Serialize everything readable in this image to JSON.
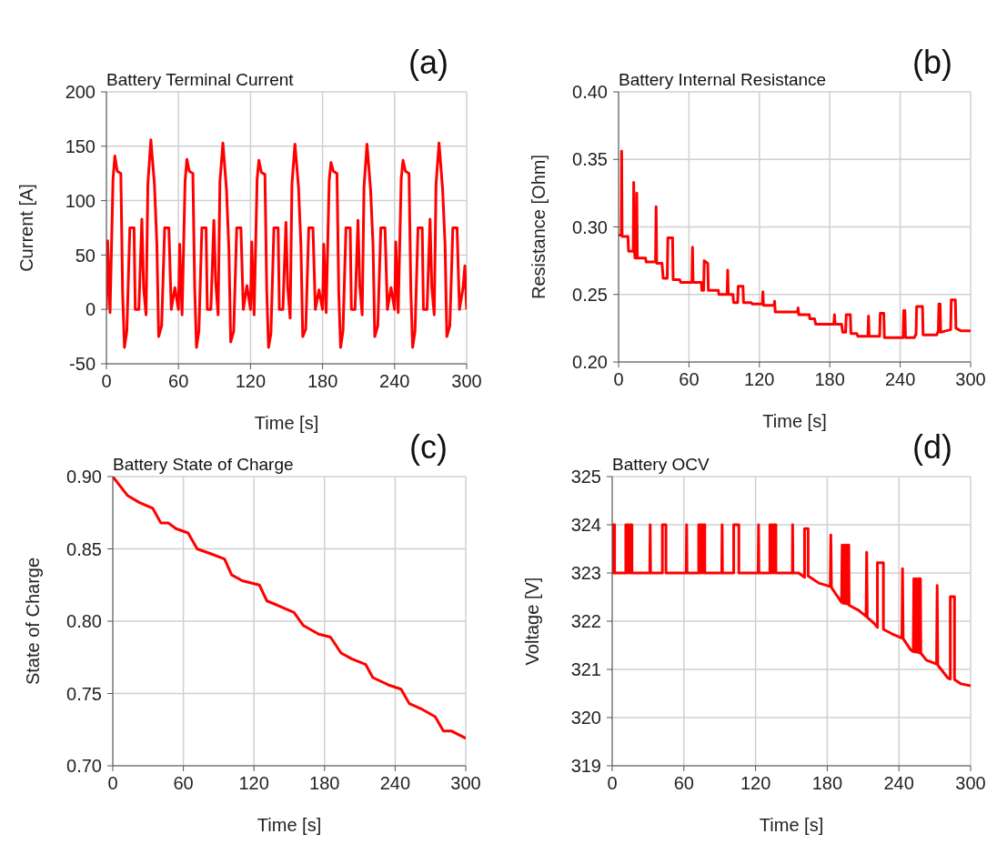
{
  "chart_data": [
    {
      "type": "line",
      "title": "Battery Terminal Current",
      "xlabel": "Time [s]",
      "ylabel": "Current [A]",
      "annotations": [
        "(a)"
      ],
      "grid": true,
      "marker": "none",
      "xlim": [
        0,
        300
      ],
      "xticks": [
        0,
        60,
        120,
        180,
        240,
        300
      ],
      "ylim": [
        -50,
        200
      ],
      "yticks": [
        -50,
        0,
        50,
        100,
        150,
        200
      ],
      "x": [
        0,
        1,
        3,
        5.5,
        7,
        9,
        12,
        13.5,
        15,
        17,
        19.5,
        23,
        24,
        27,
        29.5,
        31,
        33,
        34.5,
        37,
        40,
        42,
        43.5,
        46,
        48.5,
        52,
        54,
        57,
        60,
        61,
        63,
        65.5,
        67,
        69,
        72,
        73.5,
        75,
        77,
        79.5,
        83,
        84,
        87,
        89.5,
        91,
        93,
        94.5,
        97,
        100,
        102,
        103.5,
        106,
        108.5,
        112,
        114,
        117,
        120,
        121,
        123,
        125.5,
        127,
        129,
        132,
        133.5,
        135,
        137,
        139.5,
        143,
        144,
        147,
        149.5,
        151,
        153,
        154.5,
        157,
        160,
        162,
        163.5,
        166,
        168.5,
        172,
        174,
        177,
        180,
        181,
        183,
        185.5,
        187,
        189,
        192,
        193.5,
        195,
        197,
        199.5,
        203,
        204,
        207,
        209.5,
        211,
        213,
        214.5,
        217,
        220,
        222,
        223.5,
        226,
        228.5,
        232,
        234,
        237,
        240,
        241,
        243,
        245.5,
        247,
        249,
        252,
        253.5,
        255,
        257,
        259.5,
        263,
        264,
        267,
        269.5,
        271,
        273,
        274.5,
        277,
        280,
        282,
        283.5,
        286,
        288.5,
        292,
        294,
        297,
        298.5,
        300
      ],
      "series": [
        {
          "color": "#ff0000",
          "values": [
            0,
            63,
            -3,
            120,
            141,
            127,
            125,
            15,
            -35,
            -20,
            75,
            75,
            0,
            0,
            83,
            20,
            -5,
            115,
            156,
            115,
            60,
            -25,
            -15,
            75,
            75,
            0,
            20,
            0,
            60,
            -5,
            118,
            138,
            127,
            125,
            20,
            -35,
            -20,
            75,
            75,
            0,
            0,
            82,
            25,
            -5,
            117,
            153,
            110,
            55,
            -30,
            -20,
            75,
            75,
            0,
            22,
            0,
            62,
            -5,
            120,
            137,
            126,
            124,
            18,
            -35,
            -22,
            75,
            75,
            0,
            0,
            80,
            20,
            -8,
            115,
            152,
            112,
            58,
            -25,
            -18,
            75,
            75,
            0,
            18,
            0,
            60,
            -3,
            118,
            135,
            127,
            125,
            15,
            -35,
            -20,
            75,
            75,
            0,
            0,
            82,
            22,
            -5,
            112,
            152,
            110,
            60,
            -25,
            -15,
            75,
            75,
            0,
            20,
            0,
            62,
            -3,
            120,
            137,
            127,
            125,
            18,
            -35,
            -20,
            75,
            75,
            0,
            0,
            83,
            20,
            -5,
            115,
            153,
            110,
            60,
            -25,
            -15,
            75,
            75,
            0,
            20,
            40,
            0
          ]
        }
      ]
    },
    {
      "type": "line",
      "title": "Battery Internal Resistance",
      "xlabel": "Time [s]",
      "ylabel": "Resistance [Ohm]",
      "annotations": [
        "(b)"
      ],
      "grid": true,
      "marker": "none",
      "xlim": [
        0,
        300
      ],
      "xticks": [
        0,
        60,
        120,
        180,
        240,
        300
      ],
      "ylim": [
        0.2,
        0.4
      ],
      "yticks": [
        {
          "value": 0.2,
          "label": "0.20"
        },
        0.25,
        {
          "value": 0.3,
          "label": "0.30"
        },
        0.35,
        {
          "value": 0.4,
          "label": "0.40"
        }
      ],
      "x": [
        0,
        2.3,
        2.6,
        3,
        8,
        8.5,
        12.5,
        12.9,
        13.5,
        14,
        15.3,
        15.5,
        16,
        23,
        23.5,
        31.5,
        32,
        32.5,
        37,
        38,
        41.5,
        42,
        46,
        46.5,
        52,
        53,
        62.5,
        63,
        63.5,
        70.5,
        71,
        72.5,
        73,
        76,
        76.5,
        85,
        85.5,
        92.5,
        93,
        93.5,
        97.5,
        98,
        101.5,
        102,
        106,
        106.5,
        113,
        114,
        122.5,
        123,
        123.5,
        132.5,
        133,
        133.5,
        152.5,
        153,
        153.5,
        162.5,
        163,
        167,
        168,
        183.5,
        184,
        184.5,
        190,
        191,
        193.5,
        194,
        197.5,
        198,
        203,
        204,
        212.5,
        213,
        213.5,
        222.5,
        223,
        226,
        226.5,
        242.5,
        243,
        244,
        244.5,
        252,
        253,
        253.5,
        254,
        259,
        259.5,
        271,
        272,
        272.5,
        273,
        274,
        274.5,
        283,
        283.5,
        287,
        287.5,
        292,
        300
      ],
      "series": [
        {
          "color": "#ff0000",
          "values": [
            0.294,
            0.294,
            0.356,
            0.293,
            0.293,
            0.282,
            0.282,
            0.333,
            0.282,
            0.277,
            0.277,
            0.325,
            0.277,
            0.277,
            0.274,
            0.274,
            0.315,
            0.273,
            0.273,
            0.262,
            0.262,
            0.292,
            0.292,
            0.261,
            0.261,
            0.259,
            0.259,
            0.285,
            0.259,
            0.259,
            0.253,
            0.253,
            0.275,
            0.273,
            0.253,
            0.253,
            0.25,
            0.25,
            0.268,
            0.25,
            0.25,
            0.244,
            0.244,
            0.256,
            0.256,
            0.244,
            0.244,
            0.243,
            0.243,
            0.252,
            0.242,
            0.242,
            0.245,
            0.237,
            0.237,
            0.24,
            0.235,
            0.235,
            0.232,
            0.232,
            0.228,
            0.228,
            0.235,
            0.228,
            0.228,
            0.222,
            0.222,
            0.235,
            0.235,
            0.221,
            0.221,
            0.219,
            0.219,
            0.234,
            0.219,
            0.219,
            0.236,
            0.236,
            0.218,
            0.218,
            0.238,
            0.238,
            0.218,
            0.218,
            0.22,
            0.22,
            0.241,
            0.241,
            0.22,
            0.22,
            0.222,
            0.222,
            0.243,
            0.243,
            0.222,
            0.224,
            0.246,
            0.246,
            0.225,
            0.223,
            0.223
          ]
        }
      ]
    },
    {
      "type": "line",
      "title": "Battery State of Charge",
      "xlabel": "Time [s]",
      "ylabel": "State of Charge",
      "annotations": [
        "(c)"
      ],
      "grid": true,
      "marker": "none",
      "xlim": [
        0,
        300
      ],
      "xticks": [
        0,
        60,
        120,
        180,
        240,
        300
      ],
      "ylim": [
        0.7,
        0.9
      ],
      "yticks": [
        {
          "value": 0.7,
          "label": "0.70"
        },
        0.75,
        {
          "value": 0.8,
          "label": "0.80"
        },
        0.85,
        {
          "value": 0.9,
          "label": "0.90"
        }
      ],
      "x": [
        0,
        12.4,
        22.7,
        34,
        40.8,
        47,
        53.7,
        64,
        71.7,
        82,
        95,
        101,
        110,
        124.6,
        131,
        140,
        154,
        162,
        175,
        185,
        194,
        203,
        215,
        221,
        234,
        245,
        252,
        263,
        274,
        281,
        288,
        300
      ],
      "series": [
        {
          "color": "#ff0000",
          "values": [
            0.9,
            0.887,
            0.882,
            0.878,
            0.868,
            0.868,
            0.864,
            0.861,
            0.85,
            0.847,
            0.843,
            0.832,
            0.828,
            0.825,
            0.814,
            0.811,
            0.806,
            0.797,
            0.791,
            0.789,
            0.778,
            0.774,
            0.77,
            0.761,
            0.756,
            0.753,
            0.743,
            0.739,
            0.734,
            0.724,
            0.724,
            0.719
          ]
        }
      ]
    },
    {
      "type": "line",
      "title": "Battery OCV",
      "xlabel": "Time [s]",
      "ylabel": "Voltage [V]",
      "annotations": [
        "(d)"
      ],
      "grid": true,
      "marker": "none",
      "xlim": [
        0,
        300
      ],
      "xticks": [
        0,
        60,
        120,
        180,
        240,
        300
      ],
      "ylim": [
        319,
        325
      ],
      "yticks": [
        319,
        320,
        321,
        322,
        323,
        324,
        325
      ],
      "x": [
        0,
        0.8,
        0.8,
        2,
        2,
        11.4,
        11.4,
        12,
        12.5,
        13,
        13.5,
        14,
        14.5,
        15,
        15.5,
        16.5,
        16.5,
        31.5,
        31.8,
        32.1,
        42,
        42,
        45,
        45,
        62,
        62.3,
        62.6,
        72.4,
        72.4,
        73,
        73.5,
        74,
        74.5,
        75,
        75.5,
        76,
        76.5,
        77.5,
        77.5,
        91.7,
        92,
        92.3,
        101.7,
        101.7,
        106,
        106,
        122.2,
        122.5,
        122.8,
        132,
        132,
        132.6,
        133.2,
        133.8,
        134.4,
        135,
        135.6,
        137,
        137,
        150.8,
        151,
        151.3,
        156,
        161,
        161,
        164,
        164,
        173,
        182.5,
        183,
        183.5,
        187,
        192,
        192.5,
        193.5,
        194.5,
        195.5,
        196.5,
        197.5,
        198,
        198.3,
        206,
        212.5,
        213,
        213.5,
        219,
        222,
        222,
        227,
        227,
        234,
        242.5,
        243,
        243.5,
        250,
        252,
        252.5,
        253.5,
        254.5,
        255.5,
        256.5,
        257.5,
        258,
        258.3,
        263,
        271.5,
        272,
        272.5,
        281,
        283,
        283,
        286.5,
        286.5,
        292,
        300
      ],
      "series": [
        {
          "color": "#ff0000",
          "values": [
            323,
            323,
            324,
            324,
            323,
            323,
            324,
            323,
            324,
            323,
            324,
            323,
            324,
            323,
            324,
            324,
            323,
            323,
            324,
            323,
            323,
            324,
            324,
            323,
            323,
            324,
            323,
            323,
            324,
            323,
            324,
            323,
            324,
            323,
            324,
            323,
            324,
            324,
            323,
            323,
            324,
            323,
            323,
            324,
            324,
            323,
            323,
            324,
            323,
            323,
            324,
            323,
            324,
            323,
            324,
            323,
            324,
            324,
            323,
            323,
            324,
            323,
            323,
            322.91,
            323.92,
            323.92,
            322.94,
            322.79,
            322.72,
            323.79,
            322.7,
            322.57,
            322.39,
            323.58,
            322.37,
            323.58,
            322.36,
            323.58,
            322.35,
            323.58,
            322.33,
            322.23,
            322.1,
            323.43,
            322.08,
            321.96,
            321.87,
            323.21,
            323.21,
            321.83,
            321.74,
            321.65,
            323.09,
            321.64,
            321.4,
            321.37,
            322.88,
            321.36,
            322.88,
            321.35,
            322.88,
            321.34,
            322.88,
            321.34,
            321.19,
            321.11,
            322.74,
            321.09,
            320.82,
            320.8,
            322.51,
            322.51,
            320.79,
            320.7,
            320.66
          ]
        }
      ]
    }
  ]
}
